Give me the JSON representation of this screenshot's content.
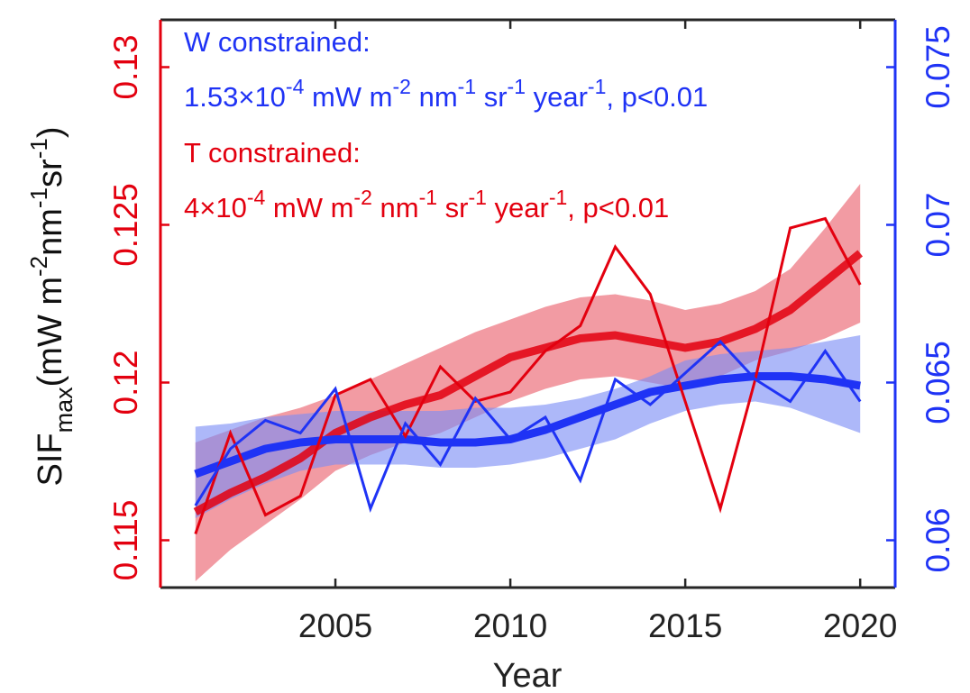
{
  "chart_data": {
    "type": "line",
    "title": "",
    "xlabel": "Year",
    "ylabel_main": "SIF",
    "ylabel_sub": "max",
    "ylabel_units": [
      {
        "text": "(mW m",
        "sup": "-2"
      },
      {
        "text": "nm",
        "sup": "-1"
      },
      {
        "text": "sr",
        "sup": "-1"
      },
      {
        "text": ")",
        "sup": ""
      }
    ],
    "xlim": [
      2000,
      2021
    ],
    "xticks": [
      2005,
      2010,
      2015,
      2020
    ],
    "xtick_labels": [
      "2005",
      "2010",
      "2015",
      "2020"
    ],
    "ylim_left": [
      0.1135,
      0.1315
    ],
    "yticks_left": [
      0.115,
      0.12,
      0.125,
      0.13
    ],
    "ytick_labels_left": [
      "0.115",
      "0.12",
      "0.125",
      "0.13"
    ],
    "ylim_right": [
      0.0585,
      0.0765
    ],
    "yticks_right": [
      0.06,
      0.065,
      0.07,
      0.075
    ],
    "ytick_labels_right": [
      "0.06",
      "0.065",
      "0.07",
      "0.075"
    ],
    "grid": false,
    "colors": {
      "red": "#e3000f",
      "red_band": "#ee7a84",
      "blue": "#1f33f5",
      "blue_band": "#7b8cf5",
      "axis": "#262626"
    },
    "x": [
      2001,
      2002,
      2003,
      2004,
      2005,
      2006,
      2007,
      2008,
      2009,
      2010,
      2011,
      2012,
      2013,
      2014,
      2015,
      2016,
      2017,
      2018,
      2019,
      2020
    ],
    "series": [
      {
        "name": "T constrained",
        "axis": "left",
        "color_key": "red",
        "values": [
          0.1152,
          0.1184,
          0.1158,
          0.1164,
          0.1196,
          0.1201,
          0.1183,
          0.1205,
          0.1194,
          0.1197,
          0.121,
          0.1218,
          0.1243,
          0.1228,
          0.1194,
          0.116,
          0.1201,
          0.1249,
          0.1252,
          0.1231
        ],
        "fit": [
          0.1159,
          0.1165,
          0.117,
          0.1176,
          0.1184,
          0.1189,
          0.1193,
          0.1196,
          0.1202,
          0.1208,
          0.1211,
          0.1214,
          0.1215,
          0.1213,
          0.1211,
          0.1213,
          0.1217,
          0.1223,
          0.1232,
          0.1241
        ],
        "fit_upper": [
          0.1181,
          0.1185,
          0.1189,
          0.1192,
          0.1196,
          0.1201,
          0.1206,
          0.1211,
          0.1216,
          0.122,
          0.1224,
          0.1227,
          0.1228,
          0.1226,
          0.1223,
          0.1225,
          0.1229,
          0.1236,
          0.1249,
          0.1263
        ],
        "fit_lower": [
          0.1137,
          0.1147,
          0.1155,
          0.1163,
          0.1172,
          0.1177,
          0.1181,
          0.1184,
          0.1189,
          0.1194,
          0.1198,
          0.1201,
          0.1202,
          0.12,
          0.1198,
          0.1202,
          0.1207,
          0.121,
          0.1214,
          0.1219
        ]
      },
      {
        "name": "W constrained",
        "axis": "right",
        "color_key": "blue",
        "values": [
          0.0611,
          0.0629,
          0.0638,
          0.0634,
          0.0648,
          0.061,
          0.0637,
          0.0624,
          0.0645,
          0.0632,
          0.0639,
          0.0619,
          0.0651,
          0.0643,
          0.0653,
          0.0663,
          0.0651,
          0.0644,
          0.066,
          0.0644
        ],
        "fit": [
          0.0621,
          0.0625,
          0.0629,
          0.0631,
          0.0632,
          0.0632,
          0.0632,
          0.0631,
          0.0631,
          0.0632,
          0.0635,
          0.0639,
          0.0643,
          0.0647,
          0.0649,
          0.0651,
          0.0652,
          0.0652,
          0.0651,
          0.0649
        ],
        "fit_upper": [
          0.0636,
          0.0637,
          0.0639,
          0.064,
          0.0641,
          0.0641,
          0.0641,
          0.0641,
          0.0642,
          0.0642,
          0.0643,
          0.0645,
          0.0648,
          0.0652,
          0.0657,
          0.0659,
          0.066,
          0.0661,
          0.0663,
          0.0665
        ],
        "fit_lower": [
          0.0607,
          0.0613,
          0.0618,
          0.0622,
          0.0624,
          0.0624,
          0.0624,
          0.0623,
          0.0623,
          0.0624,
          0.0626,
          0.0629,
          0.0632,
          0.0637,
          0.0641,
          0.0643,
          0.0644,
          0.0642,
          0.0638,
          0.0634
        ]
      }
    ],
    "annotations": [
      {
        "id": "w-title",
        "color_key": "blue",
        "parts": [
          {
            "text": "W constrained:",
            "sup": ""
          }
        ]
      },
      {
        "id": "w-trend",
        "color_key": "blue",
        "parts": [
          {
            "text": "1.53×10",
            "sup": "-4"
          },
          {
            "text": " mW m",
            "sup": "-2"
          },
          {
            "text": " nm",
            "sup": "-1"
          },
          {
            "text": " sr",
            "sup": "-1"
          },
          {
            "text": " year",
            "sup": "-1"
          },
          {
            "text": ", p<0.01",
            "sup": ""
          }
        ]
      },
      {
        "id": "t-title",
        "color_key": "red",
        "parts": [
          {
            "text": "T constrained:",
            "sup": ""
          }
        ]
      },
      {
        "id": "t-trend",
        "color_key": "red",
        "parts": [
          {
            "text": "4×10",
            "sup": "-4"
          },
          {
            "text": " mW m",
            "sup": "-2"
          },
          {
            "text": " nm",
            "sup": "-1"
          },
          {
            "text": " sr",
            "sup": "-1"
          },
          {
            "text": " year",
            "sup": "-1"
          },
          {
            "text": ", p<0.01",
            "sup": ""
          }
        ]
      }
    ]
  }
}
